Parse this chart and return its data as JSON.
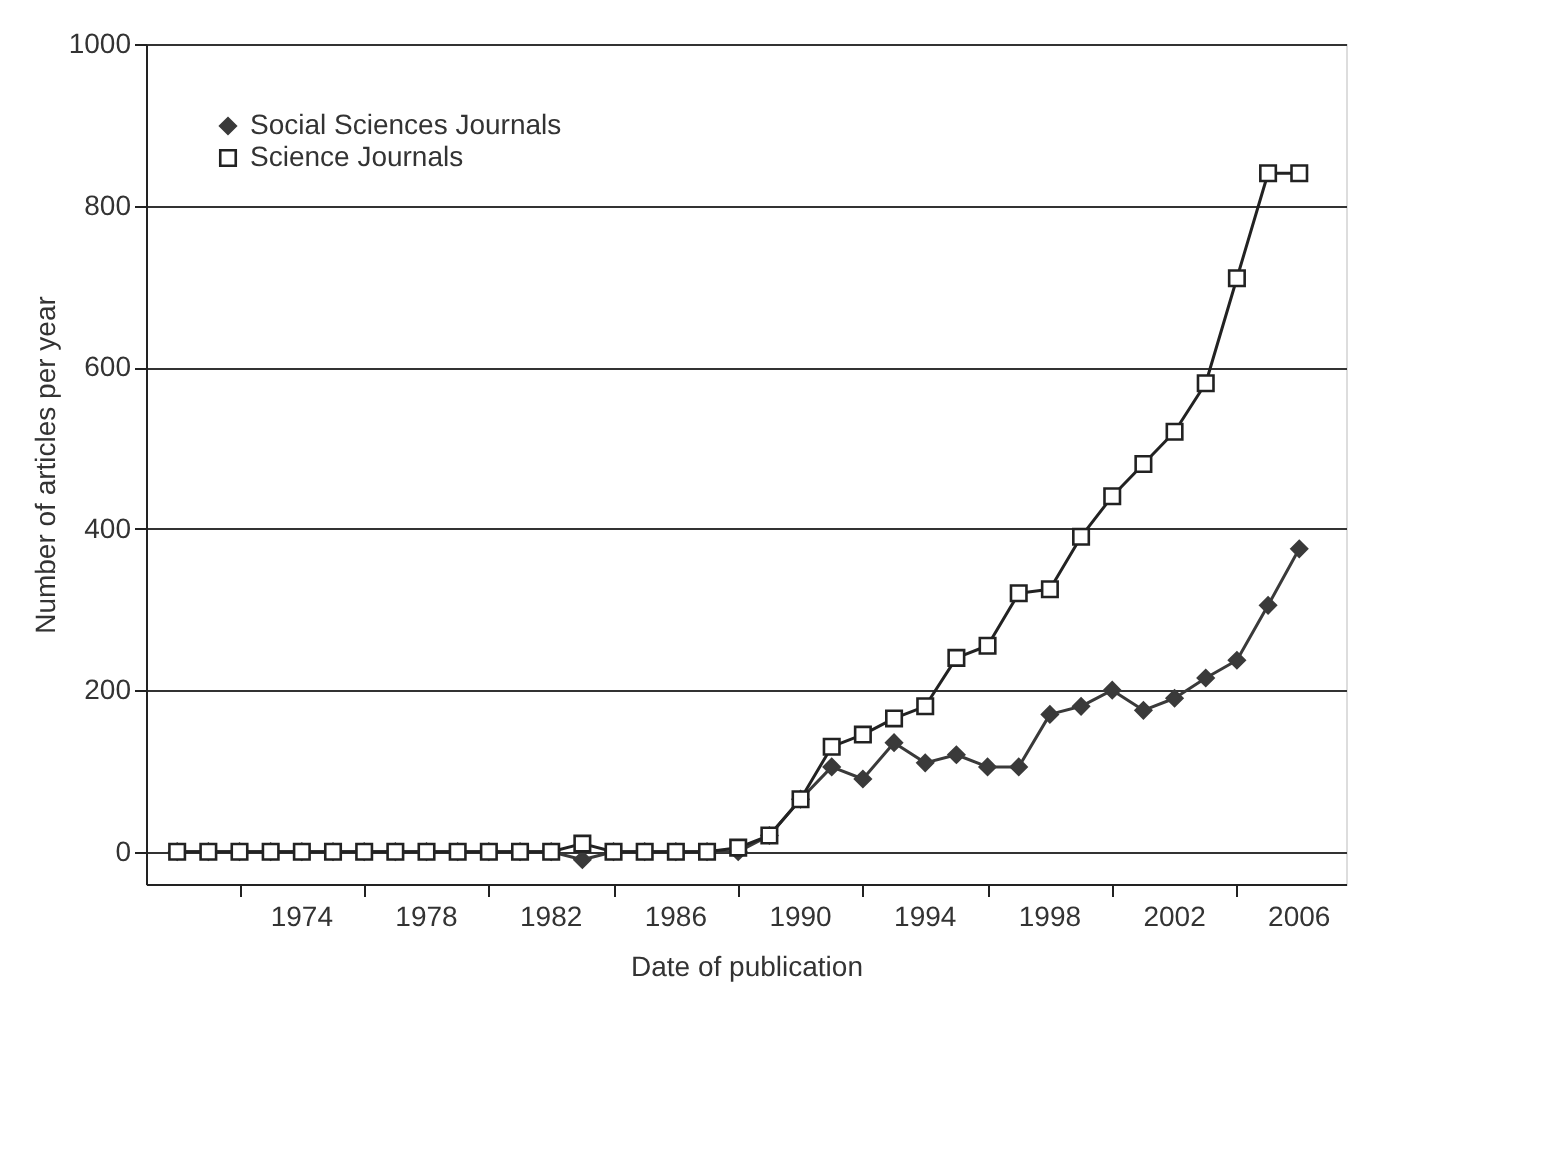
{
  "chart_data": {
    "type": "line",
    "xlabel": "Date of publication",
    "ylabel": "Number of articles per year",
    "x": [
      1970,
      1971,
      1972,
      1973,
      1974,
      1975,
      1976,
      1977,
      1978,
      1979,
      1980,
      1981,
      1982,
      1983,
      1984,
      1985,
      1986,
      1987,
      1988,
      1989,
      1990,
      1991,
      1992,
      1993,
      1994,
      1995,
      1996,
      1997,
      1998,
      1999,
      2000,
      2001,
      2002,
      2003,
      2004,
      2005,
      2006
    ],
    "series": [
      {
        "name": "Social Sciences Journals",
        "color": "#3a3a3a",
        "marker": "diamond",
        "values": [
          0,
          0,
          0,
          0,
          0,
          0,
          0,
          0,
          0,
          0,
          0,
          0,
          0,
          -10,
          0,
          0,
          0,
          0,
          0,
          20,
          65,
          105,
          90,
          135,
          110,
          120,
          105,
          105,
          170,
          180,
          200,
          175,
          190,
          215,
          237,
          305,
          375
        ]
      },
      {
        "name": "Science Journals",
        "color": "#222222",
        "marker": "square",
        "values": [
          0,
          0,
          0,
          0,
          0,
          0,
          0,
          0,
          0,
          0,
          0,
          0,
          0,
          10,
          0,
          0,
          0,
          0,
          5,
          20,
          65,
          130,
          145,
          165,
          180,
          240,
          255,
          320,
          325,
          390,
          440,
          480,
          520,
          580,
          710,
          840,
          840
        ]
      }
    ],
    "xlim": [
      1969,
      2007.5
    ],
    "xticks": [
      {
        "value": 1972,
        "label": null
      },
      1974,
      {
        "value": 1976,
        "label": null
      },
      1978,
      {
        "value": 1980,
        "label": null
      },
      1982,
      {
        "value": 1984,
        "label": null
      },
      1986,
      {
        "value": 1988,
        "label": null
      },
      1990,
      {
        "value": 1992,
        "label": null
      },
      1994,
      {
        "value": 1996,
        "label": null
      },
      1998,
      {
        "value": 2000,
        "label": null
      },
      2002,
      {
        "value": 2004,
        "label": null
      },
      2006
    ],
    "ylim": [
      -40,
      1000
    ],
    "yticks": [
      0,
      200,
      400,
      600,
      800,
      1000
    ],
    "grid": "y",
    "legend": "top left",
    "line_style": "solid"
  }
}
